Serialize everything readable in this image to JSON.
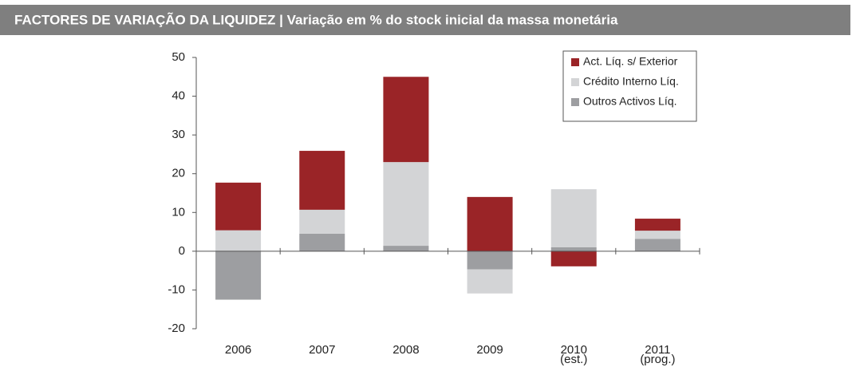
{
  "chart_data": {
    "type": "stacked_bar",
    "title": "FACTORES DE VARIAÇÃO DA LIQUIDEZ | Variação em % do stock inicial da massa monetária",
    "categories": [
      "2006",
      "2007",
      "2008",
      "2009",
      "2010\n(est.)",
      "2011\n(prog.)"
    ],
    "series": [
      {
        "name": "Outros Activos Líq.",
        "color": "#9d9ea1",
        "values": [
          -12.5,
          4.5,
          1.4,
          -4.7,
          1.0,
          3.2
        ]
      },
      {
        "name": "Crédito Interno Líq.",
        "color": "#d3d4d6",
        "values": [
          5.4,
          6.2,
          21.6,
          -6.2,
          15.0,
          2.1
        ]
      },
      {
        "name": "Act. Líq. s/ Exterior",
        "color": "#9a2427",
        "values": [
          12.3,
          15.2,
          22.0,
          14.0,
          -3.9,
          3.1
        ]
      }
    ],
    "legend_order": [
      2,
      1,
      0
    ],
    "ylim": [
      -20,
      50
    ],
    "yticks": [
      -20,
      -10,
      0,
      10,
      20,
      30,
      40,
      50
    ]
  }
}
